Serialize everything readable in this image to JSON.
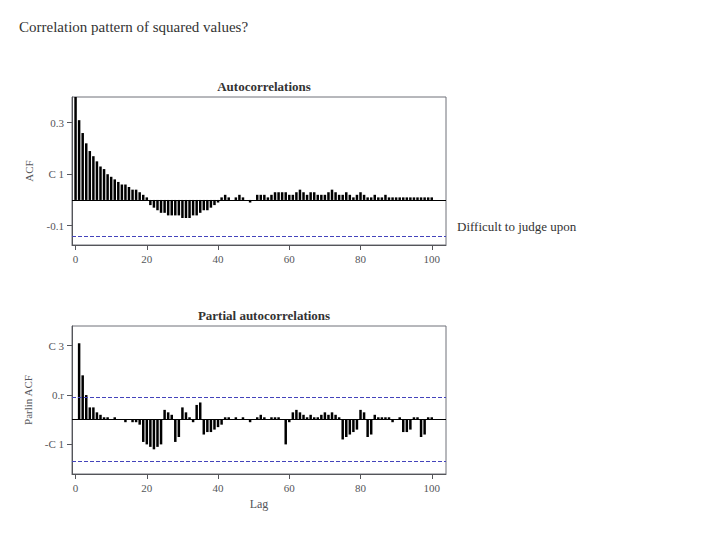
{
  "title": "Correlation pattern of squared values?",
  "annotations": [
    "Difficult to judge upon"
  ],
  "chart_data": [
    {
      "type": "bar",
      "title": "Autocorrelations",
      "ylabel": "ACF",
      "x": [
        0,
        1,
        2,
        3,
        4,
        5,
        6,
        7,
        8,
        9,
        10,
        11,
        12,
        13,
        14,
        15,
        16,
        17,
        18,
        19,
        20,
        21,
        22,
        23,
        24,
        25,
        26,
        27,
        28,
        29,
        30,
        31,
        32,
        33,
        34,
        35,
        36,
        37,
        38,
        39,
        40,
        41,
        42,
        43,
        44,
        45,
        46,
        47,
        48,
        49,
        50,
        51,
        52,
        53,
        54,
        55,
        56,
        57,
        58,
        59,
        60,
        61,
        62,
        63,
        64,
        65,
        66,
        67,
        68,
        69,
        70,
        71,
        72,
        73,
        74,
        75,
        76,
        77,
        78,
        79,
        80,
        81,
        82,
        83,
        84,
        85,
        86,
        87,
        88,
        89,
        90,
        91,
        92,
        93,
        94,
        95,
        96,
        97,
        98,
        99,
        100
      ],
      "values": [
        0.4,
        0.31,
        0.26,
        0.22,
        0.19,
        0.17,
        0.15,
        0.13,
        0.12,
        0.1,
        0.09,
        0.08,
        0.07,
        0.06,
        0.06,
        0.05,
        0.04,
        0.04,
        0.03,
        0.02,
        0.01,
        -0.02,
        -0.03,
        -0.04,
        -0.05,
        -0.05,
        -0.06,
        -0.06,
        -0.06,
        -0.06,
        -0.07,
        -0.07,
        -0.07,
        -0.06,
        -0.06,
        -0.05,
        -0.04,
        -0.04,
        -0.03,
        -0.02,
        -0.01,
        0.01,
        0.02,
        0.01,
        0.0,
        0.01,
        0.02,
        0.01,
        0.0,
        -0.01,
        0.0,
        0.02,
        0.02,
        0.02,
        0.01,
        0.02,
        0.03,
        0.03,
        0.03,
        0.03,
        0.02,
        0.02,
        0.03,
        0.04,
        0.03,
        0.02,
        0.03,
        0.03,
        0.02,
        0.02,
        0.02,
        0.03,
        0.04,
        0.03,
        0.02,
        0.02,
        0.03,
        0.02,
        0.01,
        0.02,
        0.03,
        0.02,
        0.01,
        0.01,
        0.02,
        0.01,
        0.01,
        0.02,
        0.01,
        0.01,
        0.01,
        0.01,
        0.01,
        0.01,
        0.01,
        0.01,
        0.01,
        0.01,
        0.01,
        0.01,
        0.01
      ],
      "color": "#000000",
      "xlim": [
        -1,
        104
      ],
      "xticks": [
        0,
        20,
        40,
        60,
        80,
        100
      ],
      "ylim": [
        -0.175,
        0.4
      ],
      "yticks": [
        -0.1,
        {
          "value": 0.1,
          "label": "C 1"
        },
        0.3
      ],
      "reference_lines": [
        {
          "value": 0,
          "color": "#000000",
          "line_style": "solid"
        },
        {
          "value": -0.135,
          "color": "#4444bb",
          "line_style": "dashed"
        }
      ],
      "grid": false
    },
    {
      "type": "bar",
      "title": "Partial autocorrelations",
      "ylabel": "Parlin ACF",
      "xlabel": "Lag",
      "x": [
        1,
        2,
        3,
        4,
        5,
        6,
        7,
        8,
        9,
        10,
        11,
        12,
        13,
        14,
        15,
        16,
        17,
        18,
        19,
        20,
        21,
        22,
        23,
        24,
        25,
        26,
        27,
        28,
        29,
        30,
        31,
        32,
        33,
        34,
        35,
        36,
        37,
        38,
        39,
        40,
        41,
        42,
        43,
        44,
        45,
        46,
        47,
        48,
        49,
        50,
        51,
        52,
        53,
        54,
        55,
        56,
        57,
        58,
        59,
        60,
        61,
        62,
        63,
        64,
        65,
        66,
        67,
        68,
        69,
        70,
        71,
        72,
        73,
        74,
        75,
        76,
        77,
        78,
        79,
        80,
        81,
        82,
        83,
        84,
        85,
        86,
        87,
        88,
        89,
        90,
        91,
        92,
        93,
        94,
        95,
        96,
        97,
        98,
        99,
        100
      ],
      "values": [
        0.31,
        0.18,
        0.1,
        0.05,
        0.05,
        0.03,
        0.02,
        0.01,
        0.01,
        0.0,
        0.01,
        0.0,
        0.0,
        -0.01,
        0.0,
        -0.01,
        -0.01,
        -0.02,
        -0.09,
        -0.1,
        -0.11,
        -0.12,
        -0.11,
        -0.1,
        0.04,
        0.03,
        0.02,
        -0.09,
        -0.07,
        0.05,
        0.03,
        0.01,
        -0.01,
        0.06,
        0.07,
        -0.06,
        -0.05,
        -0.05,
        -0.04,
        -0.03,
        -0.02,
        0.01,
        0.01,
        0.0,
        0.01,
        0.0,
        0.01,
        0.0,
        -0.01,
        0.0,
        0.01,
        0.02,
        0.01,
        0.0,
        0.01,
        0.01,
        0.01,
        0.0,
        -0.1,
        -0.01,
        0.03,
        0.04,
        0.03,
        0.02,
        0.01,
        0.02,
        0.01,
        0.01,
        0.02,
        0.03,
        0.02,
        0.03,
        0.02,
        0.01,
        -0.08,
        -0.07,
        -0.06,
        -0.05,
        -0.04,
        0.04,
        0.03,
        -0.07,
        -0.06,
        0.02,
        0.01,
        0.01,
        0.01,
        0.01,
        -0.01,
        0.0,
        0.01,
        -0.05,
        -0.05,
        -0.04,
        0.01,
        0.01,
        -0.07,
        -0.06,
        0.01,
        0.01
      ],
      "color": "#000000",
      "xlim": [
        -1,
        104
      ],
      "xticks": [
        0,
        20,
        40,
        60,
        80,
        100
      ],
      "ylim": [
        -0.22,
        0.38
      ],
      "yticks": [
        {
          "value": -0.1,
          "label": "-C 1"
        },
        {
          "value": 0.1,
          "label": "0.r"
        },
        {
          "value": 0.3,
          "label": "C 3"
        }
      ],
      "reference_lines": [
        {
          "value": 0,
          "color": "#000000",
          "line_style": "solid"
        },
        {
          "value": 0.085,
          "color": "#4444bb",
          "line_style": "dashed"
        },
        {
          "value": -0.165,
          "color": "#4444bb",
          "line_style": "dashed"
        }
      ],
      "grid": false
    }
  ]
}
